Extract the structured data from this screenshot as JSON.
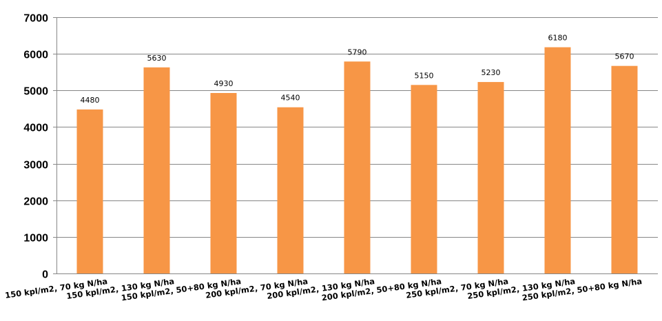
{
  "chart_data": {
    "type": "bar",
    "title": "",
    "xlabel": "",
    "ylabel": "",
    "categories": [
      "150 kpl/m2, 70 kg N/ha",
      "150 kpl/m2, 130 kg N/ha",
      "150 kpl/m2, 50+80 kg N/ha",
      "200 kpl/m2, 70 kg N/ha",
      "200 kpl/m2, 130 kg N/ha",
      "200 kpl/m2, 50+80 kg N/ha",
      "250 kpl/m2, 70 kg N/ha",
      "250 kpl/m2, 130 kg N/ha",
      "250 kpl/m2, 50+80 kg N/ha"
    ],
    "values": [
      4480,
      5630,
      4930,
      4540,
      5790,
      5150,
      5230,
      6180,
      5670
    ],
    "data_labels": [
      "4480",
      "5630",
      "4930",
      "4540",
      "5790",
      "5150",
      "5230",
      "6180",
      "5670"
    ],
    "ylim": [
      0,
      7000
    ],
    "yticks": [
      0,
      1000,
      2000,
      3000,
      4000,
      5000,
      6000,
      7000
    ],
    "ytick_labels": [
      "0",
      "1000",
      "2000",
      "3000",
      "4000",
      "5000",
      "6000",
      "7000"
    ],
    "grid": true,
    "legend": "none",
    "bar_color": "#F79646",
    "grid_color": "#868686"
  }
}
